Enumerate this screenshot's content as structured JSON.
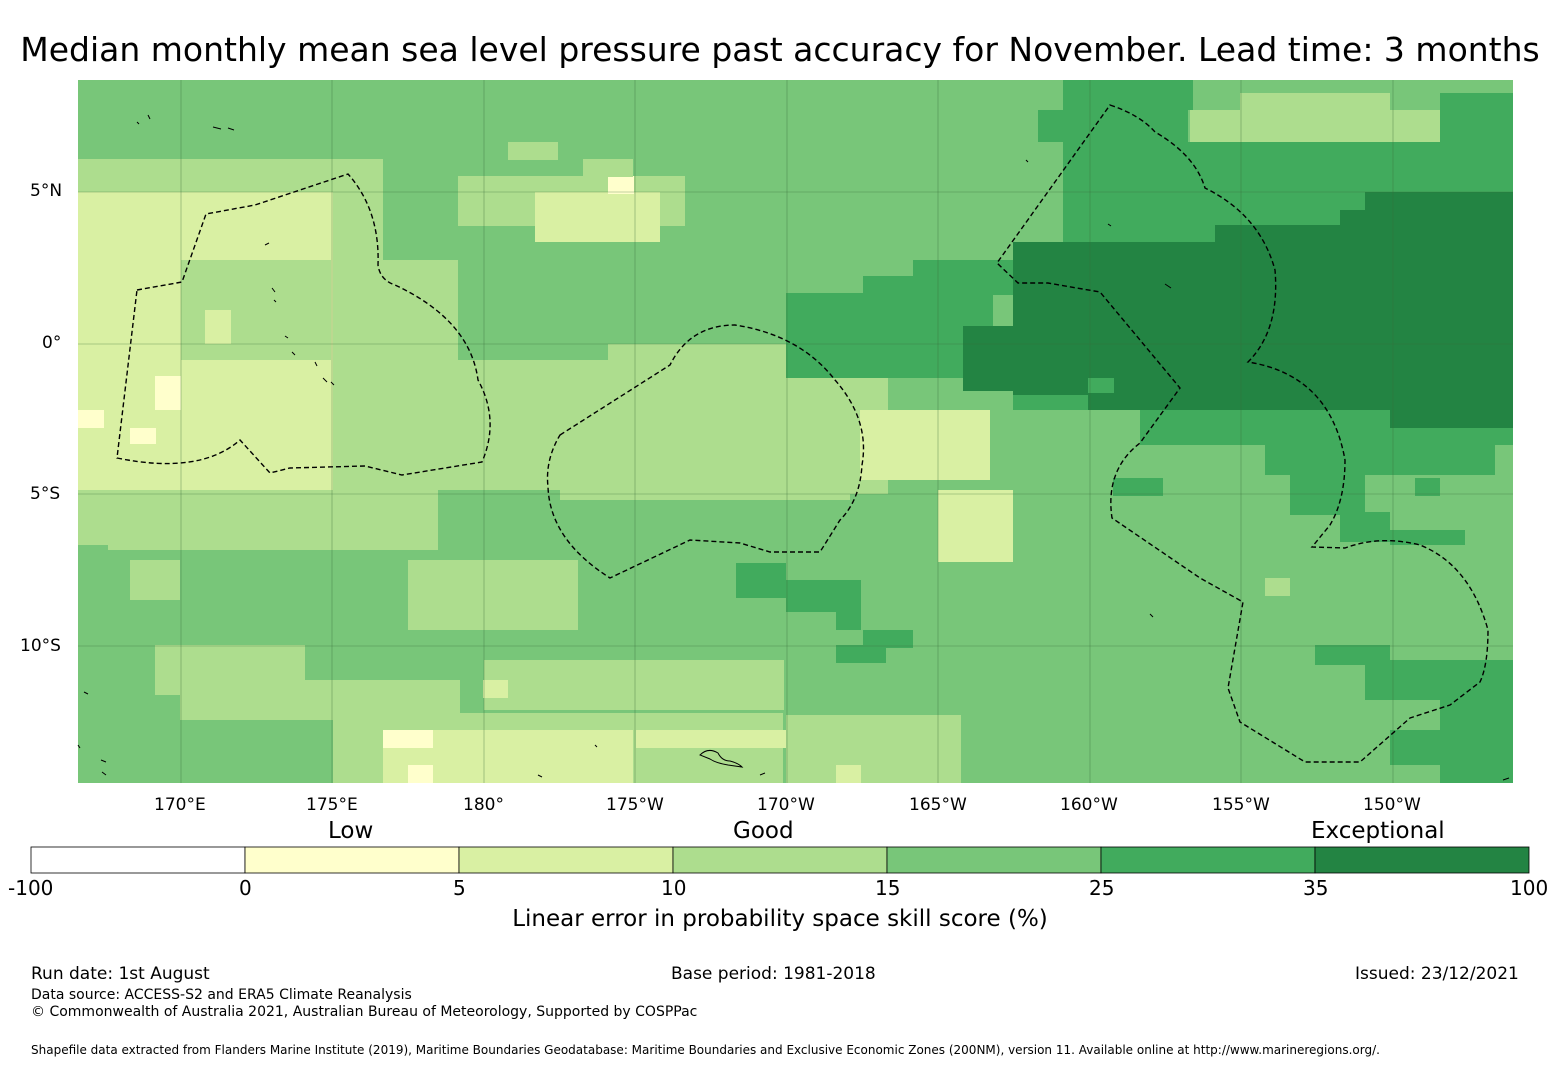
{
  "title": "Median monthly mean sea level pressure past accuracy for November. Lead time: 3 months",
  "map": {
    "lon_ticks": [
      "170°E",
      "175°E",
      "180°",
      "175°W",
      "170°W",
      "165°W",
      "160°W",
      "155°W",
      "150°W"
    ],
    "lat_ticks": [
      "5°N",
      "0°",
      "5°S",
      "10°S"
    ]
  },
  "colorbar": {
    "categories": [
      "Low",
      "Good",
      "Exceptional"
    ],
    "ticks": [
      "-100",
      "0",
      "5",
      "10",
      "15",
      "25",
      "35",
      "100"
    ],
    "colors": [
      "#ffffff",
      "#ffffcc",
      "#d9f0a3",
      "#addd8e",
      "#78c679",
      "#41ab5d",
      "#238443"
    ],
    "label": "Linear error in probability space skill score (%)"
  },
  "footer": {
    "run_date": "Run date: 1st August",
    "base_period": "Base period: 1981-2018",
    "issued": "Issued: 23/12/2021",
    "data_source": "Data source: ACCESS-S2 and ERA5 Climate Reanalysis",
    "copyright": "© Commonwealth of Australia 2021, Australian Bureau of Meteorology, Supported by COSPPac",
    "shapefile": "Shapefile data extracted from Flanders Marine Institute (2019), Maritime Boundaries Geodatabase: Maritime Boundaries and Exclusive Economic Zones (200NM), version 11. Available online at http://www.marineregions.org/."
  }
}
